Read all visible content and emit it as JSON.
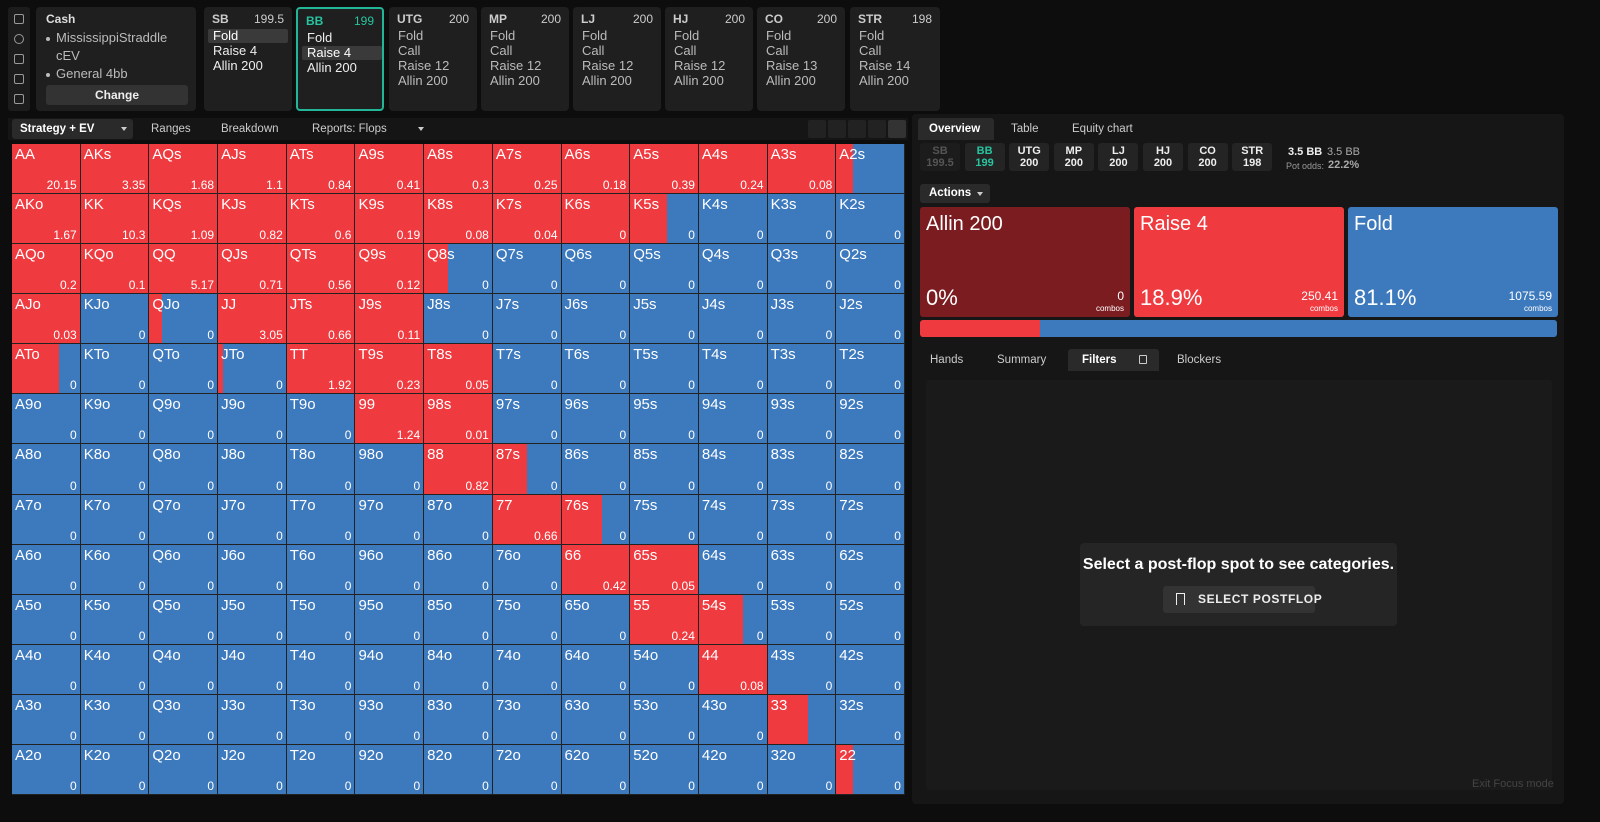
{
  "game": {
    "title": "Cash",
    "items": [
      "MississippiStraddle cEV",
      "General 4bb"
    ],
    "button": "Change"
  },
  "positions": [
    {
      "name": "SB",
      "stack": 199.5,
      "actions": [
        "Fold",
        "Raise 4",
        "Allin 200"
      ],
      "chosen": 0
    },
    {
      "name": "BB",
      "stack": 199,
      "actions": [
        "Fold",
        "Raise 4",
        "Allin 200"
      ],
      "chosen": 1,
      "active": true
    },
    {
      "name": "UTG",
      "stack": 200,
      "actions": [
        "Fold",
        "Call",
        "Raise 12",
        "Allin 200"
      ]
    },
    {
      "name": "MP",
      "stack": 200,
      "actions": [
        "Fold",
        "Call",
        "Raise 12",
        "Allin 200"
      ]
    },
    {
      "name": "LJ",
      "stack": 200,
      "actions": [
        "Fold",
        "Call",
        "Raise 12",
        "Allin 200"
      ]
    },
    {
      "name": "HJ",
      "stack": 200,
      "actions": [
        "Fold",
        "Call",
        "Raise 12",
        "Allin 200"
      ]
    },
    {
      "name": "CO",
      "stack": 200,
      "actions": [
        "Fold",
        "Call",
        "Raise 13",
        "Allin 200"
      ]
    },
    {
      "name": "STR",
      "stack": 198,
      "actions": [
        "Fold",
        "Call",
        "Raise 14",
        "Allin 200"
      ]
    }
  ],
  "left_tabs": {
    "items": [
      "Strategy + EV",
      "Ranges",
      "Breakdown",
      "Reports: Flops"
    ],
    "active": 0
  },
  "right_tabs": {
    "items": [
      "Overview",
      "Table",
      "Equity chart"
    ],
    "active": 0
  },
  "lower_tabs": {
    "items": [
      "Hands",
      "Summary",
      "Filters",
      "Blockers"
    ],
    "active": 2
  },
  "grid": {
    "raise_color": "#ef3b40",
    "fold_color": "#3d79bd",
    "hands": [
      [
        "AA",
        "AKs",
        "AQs",
        "AJs",
        "ATs",
        "A9s",
        "A8s",
        "A7s",
        "A6s",
        "A5s",
        "A4s",
        "A3s",
        "A2s"
      ],
      [
        "AKo",
        "KK",
        "KQs",
        "KJs",
        "KTs",
        "K9s",
        "K8s",
        "K7s",
        "K6s",
        "K5s",
        "K4s",
        "K3s",
        "K2s"
      ],
      [
        "AQo",
        "KQo",
        "QQ",
        "QJs",
        "QTs",
        "Q9s",
        "Q8s",
        "Q7s",
        "Q6s",
        "Q5s",
        "Q4s",
        "Q3s",
        "Q2s"
      ],
      [
        "AJo",
        "KJo",
        "QJo",
        "JJ",
        "JTs",
        "J9s",
        "J8s",
        "J7s",
        "J6s",
        "J5s",
        "J4s",
        "J3s",
        "J2s"
      ],
      [
        "ATo",
        "KTo",
        "QTo",
        "JTo",
        "TT",
        "T9s",
        "T8s",
        "T7s",
        "T6s",
        "T5s",
        "T4s",
        "T3s",
        "T2s"
      ],
      [
        "A9o",
        "K9o",
        "Q9o",
        "J9o",
        "T9o",
        "99",
        "98s",
        "97s",
        "96s",
        "95s",
        "94s",
        "93s",
        "92s"
      ],
      [
        "A8o",
        "K8o",
        "Q8o",
        "J8o",
        "T8o",
        "98o",
        "88",
        "87s",
        "86s",
        "85s",
        "84s",
        "83s",
        "82s"
      ],
      [
        "A7o",
        "K7o",
        "Q7o",
        "J7o",
        "T7o",
        "97o",
        "87o",
        "77",
        "76s",
        "75s",
        "74s",
        "73s",
        "72s"
      ],
      [
        "A6o",
        "K6o",
        "Q6o",
        "J6o",
        "T6o",
        "96o",
        "86o",
        "76o",
        "66",
        "65s",
        "64s",
        "63s",
        "62s"
      ],
      [
        "A5o",
        "K5o",
        "Q5o",
        "J5o",
        "T5o",
        "95o",
        "85o",
        "75o",
        "65o",
        "55",
        "54s",
        "53s",
        "52s"
      ],
      [
        "A4o",
        "K4o",
        "Q4o",
        "J4o",
        "T4o",
        "94o",
        "84o",
        "74o",
        "64o",
        "54o",
        "44",
        "43s",
        "42s"
      ],
      [
        "A3o",
        "K3o",
        "Q3o",
        "J3o",
        "T3o",
        "93o",
        "83o",
        "73o",
        "63o",
        "53o",
        "43o",
        "33",
        "32s"
      ],
      [
        "A2o",
        "K2o",
        "Q2o",
        "J2o",
        "T2o",
        "92o",
        "82o",
        "72o",
        "62o",
        "52o",
        "42o",
        "32o",
        "22"
      ]
    ],
    "ev": [
      [
        20.15,
        3.35,
        1.68,
        1.1,
        0.84,
        0.41,
        0.3,
        0.25,
        0.18,
        0.39,
        0.24,
        0.08,
        null
      ],
      [
        1.67,
        10.3,
        1.09,
        0.82,
        0.6,
        0.19,
        0.08,
        0.04,
        0,
        0,
        0,
        0,
        0
      ],
      [
        0.2,
        0.1,
        5.17,
        0.71,
        0.56,
        0.12,
        0,
        0,
        0,
        0,
        0,
        0,
        0
      ],
      [
        0.03,
        0,
        0,
        3.05,
        0.66,
        0.11,
        0,
        0,
        0,
        0,
        0,
        0,
        0
      ],
      [
        0,
        0,
        0,
        0,
        1.92,
        0.23,
        0.05,
        0,
        0,
        0,
        0,
        0,
        0
      ],
      [
        0,
        0,
        0,
        0,
        0,
        1.24,
        0.01,
        0,
        0,
        0,
        0,
        0,
        0
      ],
      [
        0,
        0,
        0,
        0,
        0,
        0,
        0.82,
        0,
        0,
        0,
        0,
        0,
        0
      ],
      [
        0,
        0,
        0,
        0,
        0,
        0,
        0,
        0.66,
        0,
        0,
        0,
        0,
        0
      ],
      [
        0,
        0,
        0,
        0,
        0,
        0,
        0,
        0,
        0.42,
        0.05,
        0,
        0,
        0
      ],
      [
        0,
        0,
        0,
        0,
        0,
        0,
        0,
        0,
        0,
        0.24,
        0,
        0,
        0
      ],
      [
        0,
        0,
        0,
        0,
        0,
        0,
        0,
        0,
        0,
        0,
        0.08,
        0,
        0
      ],
      [
        0,
        0,
        0,
        0,
        0,
        0,
        0,
        0,
        0,
        0,
        0,
        null,
        0
      ],
      [
        0,
        0,
        0,
        0,
        0,
        0,
        0,
        0,
        0,
        0,
        0,
        0,
        0
      ]
    ],
    "raise": [
      [
        1,
        1,
        1,
        1,
        1,
        1,
        1,
        1,
        1,
        1,
        1,
        1,
        0.25
      ],
      [
        1,
        1,
        1,
        1,
        1,
        1,
        1,
        1,
        1,
        0.55,
        0,
        0,
        0
      ],
      [
        1,
        1,
        1,
        1,
        1,
        1,
        0.35,
        0,
        0,
        0,
        0,
        0,
        0
      ],
      [
        1,
        0,
        0.18,
        1,
        1,
        1,
        0,
        0,
        0,
        0,
        0,
        0,
        0
      ],
      [
        0.7,
        0,
        0,
        0.08,
        1,
        1,
        1,
        0,
        0,
        0,
        0,
        0,
        0
      ],
      [
        0,
        0,
        0,
        0,
        0,
        1,
        1,
        0,
        0,
        0,
        0,
        0,
        0
      ],
      [
        0,
        0,
        0,
        0,
        0,
        0,
        1,
        0.5,
        0,
        0,
        0,
        0,
        0
      ],
      [
        0,
        0,
        0,
        0,
        0,
        0,
        0,
        1,
        0.6,
        0,
        0,
        0,
        0
      ],
      [
        0,
        0,
        0,
        0,
        0,
        0,
        0,
        0,
        1,
        1,
        0,
        0,
        0
      ],
      [
        0,
        0,
        0,
        0,
        0,
        0,
        0,
        0,
        0,
        1,
        0.65,
        0,
        0
      ],
      [
        0,
        0,
        0,
        0,
        0,
        0,
        0,
        0,
        0,
        0,
        1,
        0,
        0
      ],
      [
        0,
        0,
        0,
        0,
        0,
        0,
        0,
        0,
        0,
        0,
        0,
        0.6,
        0
      ],
      [
        0,
        0,
        0,
        0,
        0,
        0,
        0,
        0,
        0,
        0,
        0,
        0,
        0.25
      ]
    ]
  },
  "chips": {
    "items": [
      {
        "name": "SB",
        "stack": 199.5
      },
      {
        "name": "BB",
        "stack": 199
      },
      {
        "name": "UTG",
        "stack": 200
      },
      {
        "name": "MP",
        "stack": 200
      },
      {
        "name": "LJ",
        "stack": 200
      },
      {
        "name": "HJ",
        "stack": 200
      },
      {
        "name": "CO",
        "stack": 200
      },
      {
        "name": "STR",
        "stack": 198
      }
    ],
    "folded": [
      0
    ],
    "active": 1
  },
  "pot": {
    "size": "3.5 BB",
    "total": "3.5 BB",
    "odds_label": "Pot odds:",
    "odds": "22.2%"
  },
  "actions_menu": "Actions",
  "combos_label": "combos",
  "actions": [
    {
      "name": "Allin 200",
      "frequency": {
        "value": 0,
        "label": "0%"
      },
      "combos": 0,
      "color": "#7b1c20"
    },
    {
      "name": "Raise 4",
      "frequency": {
        "value": 18.9,
        "label": "18.9%"
      },
      "combos": 250.41,
      "color": "#ef3b40"
    },
    {
      "name": "Fold",
      "frequency": {
        "value": 81.1,
        "label": "81.1%"
      },
      "combos": 1075.59,
      "color": "#3d79bd"
    }
  ],
  "postflop": {
    "message": "Select a post-flop spot to see categories.",
    "button": "SELECT POSTFLOP"
  },
  "exit": "Exit Focus mode"
}
